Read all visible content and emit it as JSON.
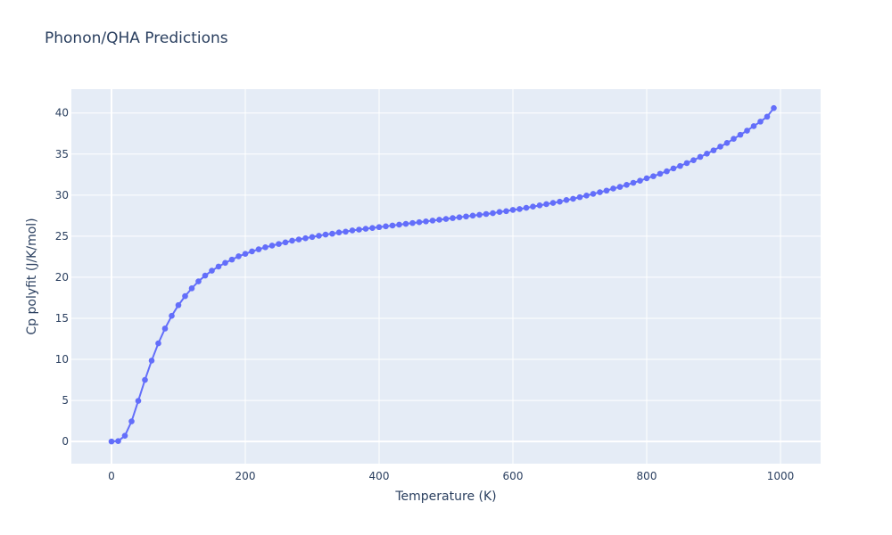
{
  "chart_data": {
    "type": "line",
    "title": "Phonon/QHA Predictions",
    "xlabel": "Temperature (K)",
    "ylabel": "Cp polyfit (J/K/mol)",
    "xlim": [
      -60,
      1060
    ],
    "ylim": [
      -2.7,
      42.9
    ],
    "x_ticks": [
      0,
      200,
      400,
      600,
      800,
      1000
    ],
    "y_ticks": [
      0,
      5,
      10,
      15,
      20,
      25,
      30,
      35,
      40
    ],
    "grid": true,
    "legend": "none",
    "colors": {
      "series": "#636efa",
      "plot_bg": "#e5ecf6",
      "grid": "#ffffff",
      "text": "#2a3f5f"
    },
    "series": [
      {
        "x": [
          0,
          10,
          20,
          30,
          40,
          50,
          60,
          70,
          80,
          90,
          100,
          110,
          120,
          130,
          140,
          150,
          160,
          170,
          180,
          190,
          200,
          210,
          220,
          230,
          240,
          250,
          260,
          270,
          280,
          290,
          300,
          310,
          320,
          330,
          340,
          350,
          360,
          370,
          380,
          390,
          400,
          410,
          420,
          430,
          440,
          450,
          460,
          470,
          480,
          490,
          500,
          510,
          520,
          530,
          540,
          550,
          560,
          570,
          580,
          590,
          600,
          610,
          620,
          630,
          640,
          650,
          660,
          670,
          680,
          690,
          700,
          710,
          720,
          730,
          740,
          750,
          760,
          770,
          780,
          790,
          800,
          810,
          820,
          830,
          840,
          850,
          860,
          870,
          880,
          890,
          900,
          910,
          920,
          930,
          940,
          950,
          960,
          970,
          980,
          990
        ],
        "values": [
          0,
          0.05,
          0.7,
          2.45,
          4.95,
          7.5,
          9.85,
          11.95,
          13.75,
          15.3,
          16.6,
          17.7,
          18.65,
          19.5,
          20.2,
          20.8,
          21.3,
          21.75,
          22.15,
          22.55,
          22.85,
          23.15,
          23.4,
          23.65,
          23.85,
          24.05,
          24.25,
          24.45,
          24.6,
          24.75,
          24.9,
          25.05,
          25.2,
          25.3,
          25.45,
          25.55,
          25.7,
          25.8,
          25.9,
          26.0,
          26.1,
          26.2,
          26.3,
          26.4,
          26.5,
          26.6,
          26.7,
          26.8,
          26.9,
          27.0,
          27.1,
          27.2,
          27.3,
          27.4,
          27.5,
          27.6,
          27.7,
          27.8,
          27.95,
          28.05,
          28.2,
          28.3,
          28.45,
          28.6,
          28.75,
          28.9,
          29.05,
          29.2,
          29.4,
          29.55,
          29.75,
          29.95,
          30.15,
          30.35,
          30.55,
          30.8,
          31.0,
          31.25,
          31.5,
          31.75,
          32.05,
          32.3,
          32.6,
          32.9,
          33.25,
          33.55,
          33.9,
          34.25,
          34.65,
          35.05,
          35.45,
          35.9,
          36.35,
          36.85,
          37.35,
          37.85,
          38.4,
          38.95,
          39.55,
          40.6
        ]
      }
    ]
  }
}
